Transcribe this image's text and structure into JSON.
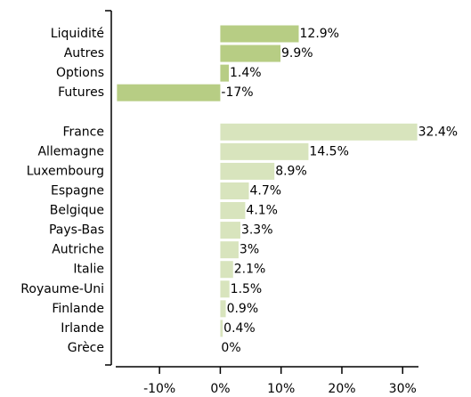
{
  "chart_data": {
    "type": "bar",
    "orientation": "horizontal",
    "categories": [
      "Liquidité",
      "Autres",
      "Options",
      "Futures",
      null,
      "France",
      "Allemagne",
      "Luxembourg",
      "Espagne",
      "Belgique",
      "Pays-Bas",
      "Autriche",
      "Italie",
      "Royaume-Uni",
      "Finlande",
      "Irlande",
      "Grèce"
    ],
    "values": [
      12.9,
      9.9,
      1.4,
      -17,
      null,
      32.4,
      14.5,
      8.9,
      4.7,
      4.1,
      3.3,
      3,
      2.1,
      1.5,
      0.9,
      0.4,
      0
    ],
    "value_labels": [
      "12.9%",
      "9.9%",
      "1.4%",
      "-17%",
      null,
      "32.4%",
      "14.5%",
      "8.9%",
      "4.7%",
      "4.1%",
      "3.3%",
      "3%",
      "2.1%",
      "1.5%",
      "0.9%",
      "0.4%",
      "0%"
    ],
    "colors": [
      "#b7cd84",
      "#b7cd84",
      "#b7cd84",
      "#b7cd84",
      null,
      "#d8e4bd",
      "#d8e4bd",
      "#d8e4bd",
      "#d8e4bd",
      "#d8e4bd",
      "#d8e4bd",
      "#d8e4bd",
      "#d8e4bd",
      "#d8e4bd",
      "#d8e4bd",
      "#d8e4bd",
      "#d8e4bd"
    ],
    "xlim": [
      -17.2,
      32.6
    ],
    "xticks": [
      {
        "value": -10,
        "label": "-10%"
      },
      {
        "value": 0,
        "label": "0%"
      },
      {
        "value": 10,
        "label": "10%"
      },
      {
        "value": 20,
        "label": "20%"
      },
      {
        "value": 30,
        "label": "30%"
      }
    ]
  }
}
